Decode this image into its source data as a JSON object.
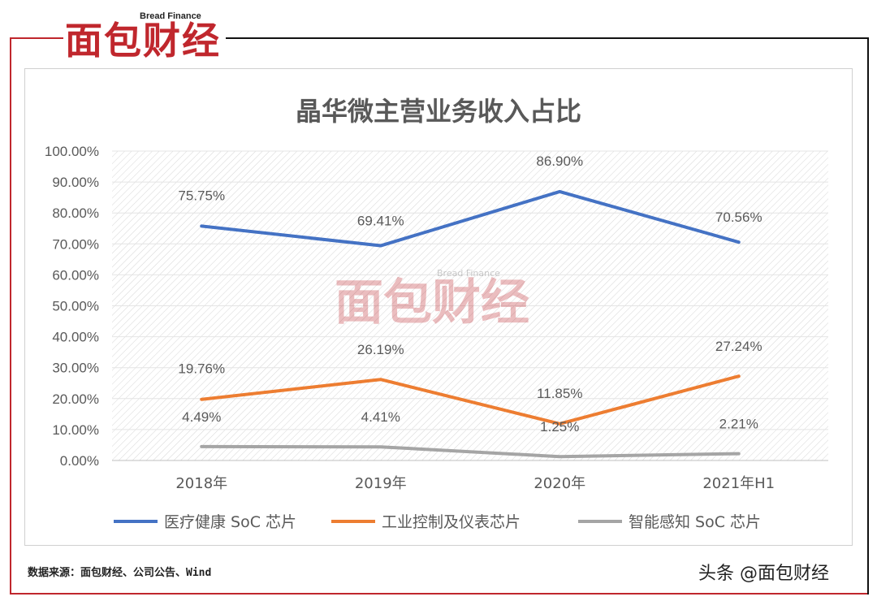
{
  "brand": {
    "small": "Bread Finance",
    "big": "面包财经"
  },
  "source_text": "数据来源：面包财经、公司公告、Wind",
  "credit_text": "头条 @面包财经",
  "colors": {
    "series1": "#4472c4",
    "series2": "#ed7d31",
    "series3": "#a5a5a5",
    "brand_red": "#c0272d"
  },
  "chart_data": {
    "type": "line",
    "title": "晶华微主营业务收入占比",
    "categories": [
      "2018年",
      "2019年",
      "2020年",
      "2021年H1"
    ],
    "ylim": [
      0,
      100
    ],
    "yticks": [
      "0.00%",
      "10.00%",
      "20.00%",
      "30.00%",
      "40.00%",
      "50.00%",
      "60.00%",
      "70.00%",
      "80.00%",
      "90.00%",
      "100.00%"
    ],
    "series": [
      {
        "name": "医疗健康 SoC 芯片",
        "values": [
          75.75,
          69.41,
          86.9,
          70.56
        ],
        "labels": [
          "75.75%",
          "69.41%",
          "86.90%",
          "70.56%"
        ]
      },
      {
        "name": "工业控制及仪表芯片",
        "values": [
          19.76,
          26.19,
          11.85,
          27.24
        ],
        "labels": [
          "19.76%",
          "26.19%",
          "11.85%",
          "27.24%"
        ]
      },
      {
        "name": "智能感知 SoC 芯片",
        "values": [
          4.49,
          4.41,
          1.25,
          2.21
        ],
        "labels": [
          "4.49%",
          "4.41%",
          "1.25%",
          "2.21%"
        ]
      }
    ],
    "grid": true,
    "legend": "bottom"
  }
}
